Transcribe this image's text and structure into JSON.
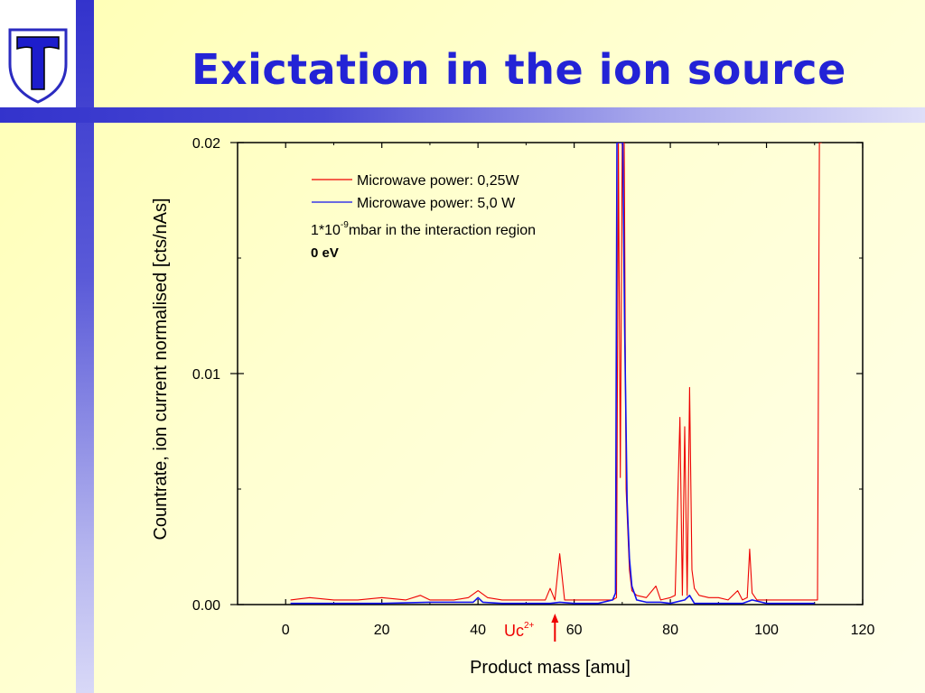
{
  "slide": {
    "title": "Exictation in the ion source",
    "colors": {
      "title": "#2323d6",
      "accent_bar": "#3333cc",
      "background": "#ffffc8",
      "series_red": "#ee0000",
      "series_blue": "#1111ee"
    }
  },
  "chart_data": {
    "type": "line",
    "title": "",
    "xlabel": "Product mass [amu]",
    "ylabel": "Countrate, ion current normalised [cts/nAs]",
    "xlim": [
      -10,
      120
    ],
    "ylim": [
      0,
      0.02
    ],
    "x_ticks": [
      "0",
      "20",
      "40",
      "60",
      "80",
      "100",
      "120"
    ],
    "y_ticks": [
      "0.00",
      "0.01",
      "0.02"
    ],
    "grid": false,
    "legend_position": "top-center",
    "legend": {
      "entries": [
        "Microwave power: 0,25W",
        "Microwave power: 5,0 W"
      ],
      "note_prefix": "1*10",
      "note_exponent": "-9",
      "note_suffix": "mbar in the interaction region",
      "energy": "0 eV"
    },
    "annotation": {
      "label": "Uc",
      "superscript": "2+",
      "x": 56
    },
    "series": [
      {
        "name": "Microwave power: 0,25W",
        "color": "#ee0000",
        "x": [
          1,
          5,
          10,
          15,
          20,
          25,
          28,
          30,
          35,
          38,
          40,
          42,
          45,
          50,
          54,
          55,
          56,
          57,
          58,
          60,
          65,
          68,
          68.8,
          69.2,
          69.6,
          70,
          70.4,
          70.8,
          71.5,
          72,
          73,
          75,
          77,
          78,
          80,
          81,
          82,
          82.5,
          83,
          83.5,
          84,
          84.5,
          85,
          86,
          88,
          90,
          92,
          94,
          95,
          96,
          96.5,
          97,
          98,
          100,
          105,
          110,
          110.6,
          111,
          111.5
        ],
        "y": [
          0.0002,
          0.0003,
          0.0002,
          0.0002,
          0.0003,
          0.0002,
          0.0004,
          0.0002,
          0.0002,
          0.0003,
          0.0006,
          0.0003,
          0.0002,
          0.0002,
          0.0002,
          0.0007,
          0.0002,
          0.0022,
          0.0002,
          0.0002,
          0.0002,
          0.0002,
          0.0003,
          0.02,
          0.0055,
          0.02,
          0.02,
          0.005,
          0.0015,
          0.0006,
          0.0004,
          0.0003,
          0.0008,
          0.0002,
          0.0003,
          0.0004,
          0.0081,
          0.0004,
          0.0077,
          0.0004,
          0.0094,
          0.0015,
          0.0007,
          0.0004,
          0.0003,
          0.0003,
          0.0002,
          0.0006,
          0.0002,
          0.0003,
          0.0024,
          0.0005,
          0.0002,
          0.0002,
          0.0002,
          0.0002,
          0.0002,
          0.02,
          0.02
        ]
      },
      {
        "name": "Microwave power: 5,0 W",
        "color": "#1111ee",
        "x": [
          1,
          10,
          20,
          30,
          39,
          40,
          41,
          45,
          50,
          55,
          57,
          60,
          65,
          68,
          68.6,
          68.9,
          69.3,
          69.7,
          70.1,
          70.5,
          71,
          71.5,
          72,
          73,
          75,
          78,
          80,
          83,
          84,
          85,
          88,
          90,
          95,
          97,
          100,
          105,
          110
        ],
        "y": [
          5e-05,
          5e-05,
          5e-05,
          0.0001,
          0.0001,
          0.0003,
          0.0001,
          5e-05,
          5e-05,
          5e-05,
          0.0001,
          5e-05,
          5e-05,
          0.0002,
          0.0005,
          0.02,
          0.02,
          0.02,
          0.02,
          0.012,
          0.0045,
          0.002,
          0.0008,
          0.0002,
          0.0001,
          0.0001,
          5e-05,
          0.0002,
          0.0004,
          5e-05,
          5e-05,
          5e-05,
          5e-05,
          0.0002,
          5e-05,
          5e-05,
          5e-05
        ]
      }
    ]
  }
}
